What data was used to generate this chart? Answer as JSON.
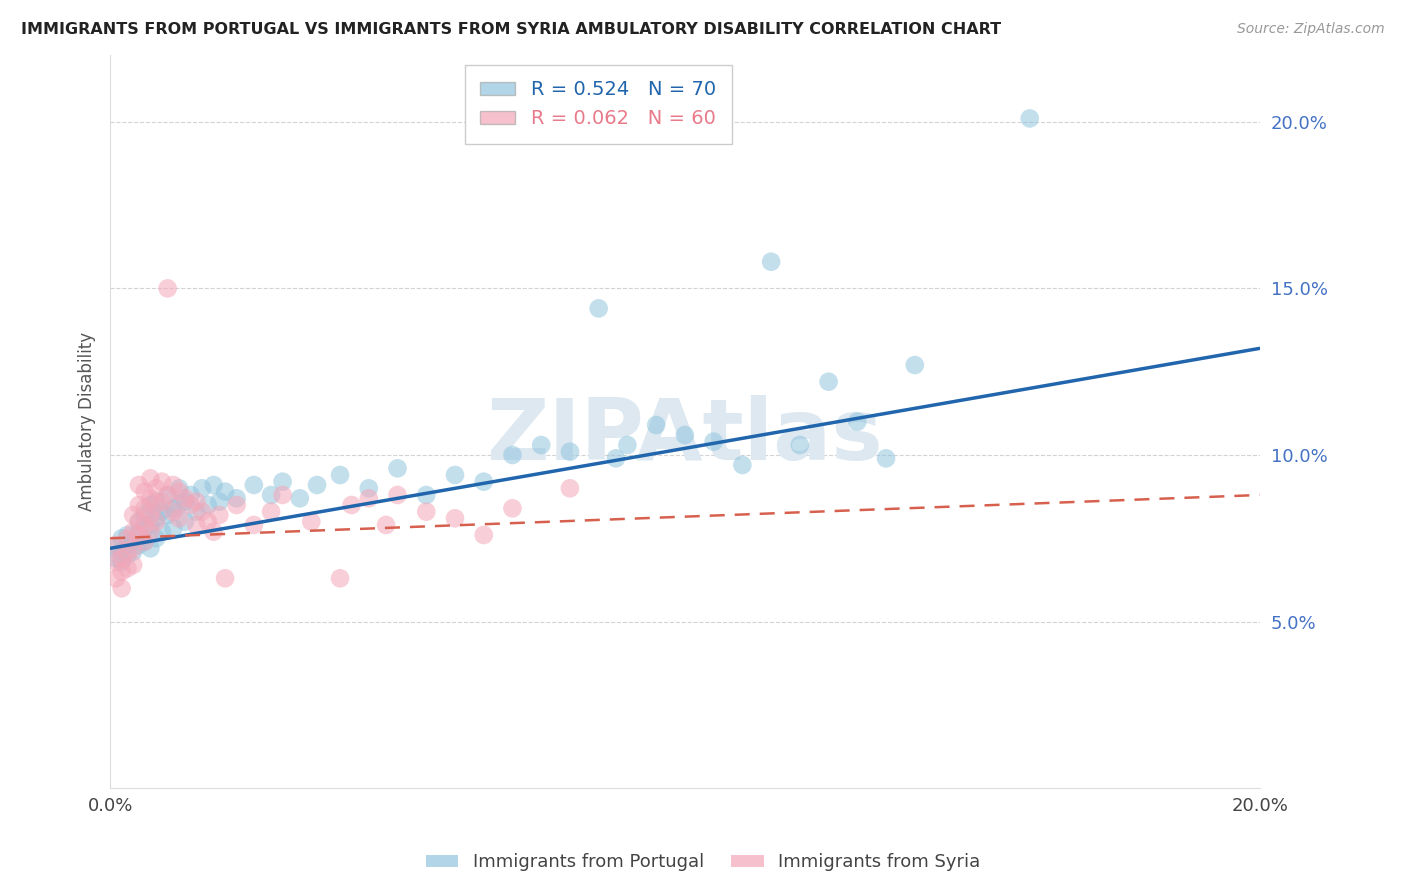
{
  "title": "IMMIGRANTS FROM PORTUGAL VS IMMIGRANTS FROM SYRIA AMBULATORY DISABILITY CORRELATION CHART",
  "source": "Source: ZipAtlas.com",
  "ylabel": "Ambulatory Disability",
  "xlim": [
    0.0,
    0.2
  ],
  "ylim": [
    0.0,
    0.22
  ],
  "yticks_right": [
    0.05,
    0.1,
    0.15,
    0.2
  ],
  "ytick_labels_right": [
    "5.0%",
    "10.0%",
    "15.0%",
    "20.0%"
  ],
  "background_color": "#ffffff",
  "grid_color": "#c8c8c8",
  "portugal_color": "#92c5de",
  "syria_color": "#f4a6b8",
  "portugal_line_color": "#2166ac",
  "syria_line_color": "#d6604d",
  "watermark_color": "#dde8f0",
  "portugal_points": [
    [
      0.001,
      0.072
    ],
    [
      0.001,
      0.069
    ],
    [
      0.002,
      0.075
    ],
    [
      0.002,
      0.071
    ],
    [
      0.002,
      0.068
    ],
    [
      0.003,
      0.073
    ],
    [
      0.003,
      0.076
    ],
    [
      0.003,
      0.07
    ],
    [
      0.004,
      0.074
    ],
    [
      0.004,
      0.071
    ],
    [
      0.005,
      0.08
    ],
    [
      0.005,
      0.077
    ],
    [
      0.005,
      0.073
    ],
    [
      0.006,
      0.082
    ],
    [
      0.006,
      0.078
    ],
    [
      0.006,
      0.074
    ],
    [
      0.007,
      0.085
    ],
    [
      0.007,
      0.079
    ],
    [
      0.007,
      0.072
    ],
    [
      0.008,
      0.086
    ],
    [
      0.008,
      0.081
    ],
    [
      0.008,
      0.075
    ],
    [
      0.009,
      0.083
    ],
    [
      0.009,
      0.077
    ],
    [
      0.01,
      0.088
    ],
    [
      0.01,
      0.082
    ],
    [
      0.011,
      0.084
    ],
    [
      0.011,
      0.078
    ],
    [
      0.012,
      0.09
    ],
    [
      0.012,
      0.085
    ],
    [
      0.013,
      0.086
    ],
    [
      0.013,
      0.08
    ],
    [
      0.014,
      0.088
    ],
    [
      0.015,
      0.083
    ],
    [
      0.016,
      0.09
    ],
    [
      0.017,
      0.085
    ],
    [
      0.018,
      0.091
    ],
    [
      0.019,
      0.086
    ],
    [
      0.02,
      0.089
    ],
    [
      0.022,
      0.087
    ],
    [
      0.025,
      0.091
    ],
    [
      0.028,
      0.088
    ],
    [
      0.03,
      0.092
    ],
    [
      0.033,
      0.087
    ],
    [
      0.036,
      0.091
    ],
    [
      0.04,
      0.094
    ],
    [
      0.045,
      0.09
    ],
    [
      0.05,
      0.096
    ],
    [
      0.055,
      0.088
    ],
    [
      0.06,
      0.094
    ],
    [
      0.065,
      0.092
    ],
    [
      0.07,
      0.1
    ],
    [
      0.075,
      0.103
    ],
    [
      0.08,
      0.101
    ],
    [
      0.085,
      0.144
    ],
    [
      0.088,
      0.099
    ],
    [
      0.09,
      0.103
    ],
    [
      0.095,
      0.109
    ],
    [
      0.1,
      0.106
    ],
    [
      0.105,
      0.104
    ],
    [
      0.11,
      0.097
    ],
    [
      0.115,
      0.158
    ],
    [
      0.12,
      0.103
    ],
    [
      0.125,
      0.122
    ],
    [
      0.13,
      0.11
    ],
    [
      0.135,
      0.099
    ],
    [
      0.14,
      0.127
    ],
    [
      0.16,
      0.201
    ]
  ],
  "syria_points": [
    [
      0.001,
      0.073
    ],
    [
      0.001,
      0.068
    ],
    [
      0.001,
      0.063
    ],
    [
      0.002,
      0.069
    ],
    [
      0.002,
      0.065
    ],
    [
      0.002,
      0.06
    ],
    [
      0.003,
      0.075
    ],
    [
      0.003,
      0.071
    ],
    [
      0.003,
      0.066
    ],
    [
      0.004,
      0.082
    ],
    [
      0.004,
      0.077
    ],
    [
      0.004,
      0.072
    ],
    [
      0.004,
      0.067
    ],
    [
      0.005,
      0.091
    ],
    [
      0.005,
      0.085
    ],
    [
      0.005,
      0.08
    ],
    [
      0.005,
      0.076
    ],
    [
      0.006,
      0.089
    ],
    [
      0.006,
      0.084
    ],
    [
      0.006,
      0.079
    ],
    [
      0.006,
      0.074
    ],
    [
      0.007,
      0.093
    ],
    [
      0.007,
      0.087
    ],
    [
      0.007,
      0.082
    ],
    [
      0.007,
      0.077
    ],
    [
      0.008,
      0.09
    ],
    [
      0.008,
      0.085
    ],
    [
      0.008,
      0.08
    ],
    [
      0.009,
      0.092
    ],
    [
      0.009,
      0.086
    ],
    [
      0.01,
      0.15
    ],
    [
      0.01,
      0.088
    ],
    [
      0.011,
      0.091
    ],
    [
      0.011,
      0.083
    ],
    [
      0.012,
      0.089
    ],
    [
      0.012,
      0.081
    ],
    [
      0.013,
      0.087
    ],
    [
      0.014,
      0.085
    ],
    [
      0.015,
      0.079
    ],
    [
      0.015,
      0.086
    ],
    [
      0.016,
      0.083
    ],
    [
      0.017,
      0.08
    ],
    [
      0.018,
      0.077
    ],
    [
      0.019,
      0.082
    ],
    [
      0.02,
      0.063
    ],
    [
      0.022,
      0.085
    ],
    [
      0.025,
      0.079
    ],
    [
      0.028,
      0.083
    ],
    [
      0.03,
      0.088
    ],
    [
      0.035,
      0.08
    ],
    [
      0.04,
      0.063
    ],
    [
      0.042,
      0.085
    ],
    [
      0.045,
      0.087
    ],
    [
      0.048,
      0.079
    ],
    [
      0.05,
      0.088
    ],
    [
      0.055,
      0.083
    ],
    [
      0.06,
      0.081
    ],
    [
      0.065,
      0.076
    ],
    [
      0.07,
      0.084
    ],
    [
      0.08,
      0.09
    ]
  ]
}
